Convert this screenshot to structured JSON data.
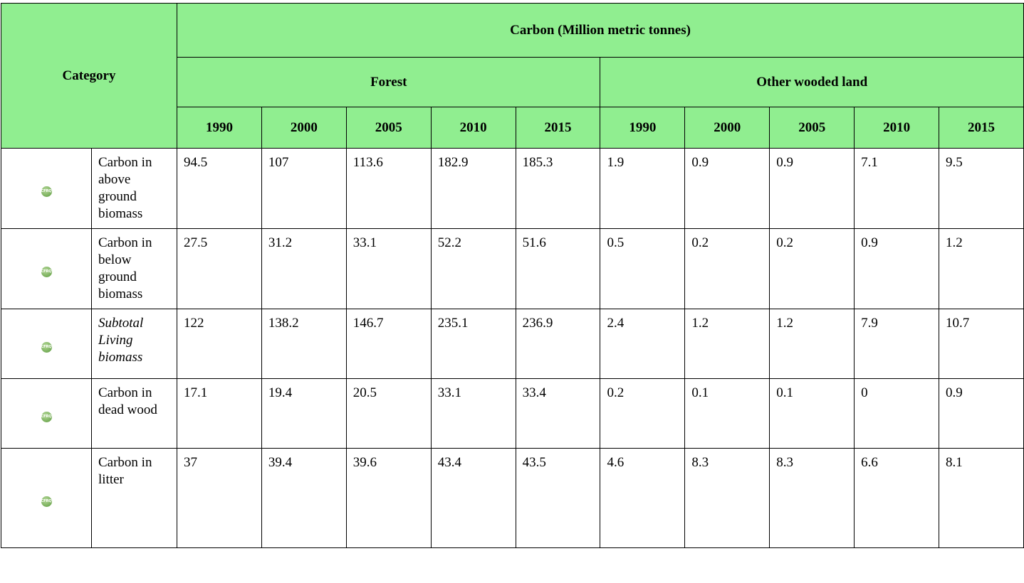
{
  "header": {
    "category": "Category",
    "title": "Carbon (Million metric tonnes)",
    "forest": "Forest",
    "other_wooded_land": "Other wooded land",
    "years": [
      "1990",
      "2000",
      "2005",
      "2010",
      "2015",
      "1990",
      "2000",
      "2005",
      "2010",
      "2015"
    ]
  },
  "table": {
    "rows": [
      {
        "icon": "CFRQ",
        "label": "Carbon in above ground biomass",
        "italic": false,
        "values": [
          94.5,
          107,
          113.6,
          182.9,
          185.3,
          1.9,
          0.9,
          0.9,
          7.1,
          9.5
        ]
      },
      {
        "icon": "CFRQ",
        "label": "Carbon in below ground biomass",
        "italic": false,
        "values": [
          27.5,
          31.2,
          33.1,
          52.2,
          51.6,
          0.5,
          0.2,
          0.2,
          0.9,
          1.2
        ]
      },
      {
        "icon": "CFRQ",
        "label": "Subtotal Living biomass",
        "italic": true,
        "values": [
          122,
          138.2,
          146.7,
          235.1,
          236.9,
          2.4,
          1.2,
          1.2,
          7.9,
          10.7
        ]
      },
      {
        "icon": "CFRQ",
        "label": "Carbon in dead wood",
        "italic": false,
        "values": [
          17.1,
          19.4,
          20.5,
          33.1,
          33.4,
          0.2,
          0.1,
          0.1,
          0,
          0.9
        ]
      },
      {
        "icon": "CFRQ",
        "label": "Carbon in litter",
        "italic": false,
        "values": [
          37,
          39.4,
          39.6,
          43.4,
          43.5,
          4.6,
          8.3,
          8.3,
          6.6,
          8.1
        ]
      }
    ]
  }
}
